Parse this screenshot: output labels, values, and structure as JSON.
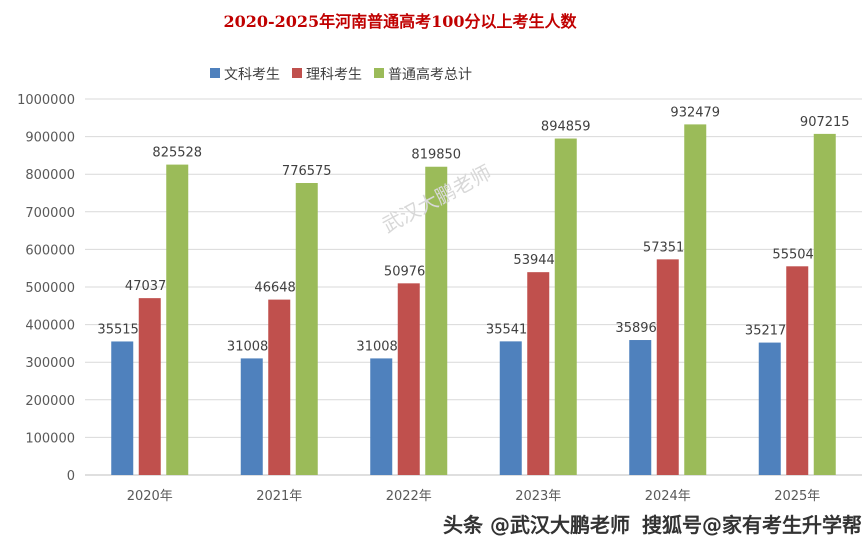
{
  "chart_data": {
    "type": "bar",
    "title": "2020-2025年河南普通高考100分以上考生人数",
    "categories": [
      "2020年",
      "2021年",
      "2022年",
      "2023年",
      "2024年",
      "2025年"
    ],
    "series": [
      {
        "name": "文科考生",
        "color": "#4f81bd",
        "values": [
          355150,
          310088,
          310088,
          355412,
          358962,
          352175
        ]
      },
      {
        "name": "理科考生",
        "color": "#c0504d",
        "values": [
          470378,
          466487,
          509762,
          539447,
          573517,
          555040
        ]
      },
      {
        "name": "普通高考总计",
        "color": "#9bbb59",
        "values": [
          825528,
          776575,
          819850,
          894859,
          932479,
          907215
        ]
      }
    ],
    "ylim": [
      0,
      1000000
    ],
    "yticks": [
      0,
      100000,
      200000,
      300000,
      400000,
      500000,
      600000,
      700000,
      800000,
      900000,
      1000000
    ],
    "grid": true,
    "legend": "top"
  },
  "watermarks": {
    "center": "武汉大鹏老师",
    "bottom1": "头条 @武汉大鹏老师",
    "bottom2": "搜狐号@家有考生升学帮"
  }
}
